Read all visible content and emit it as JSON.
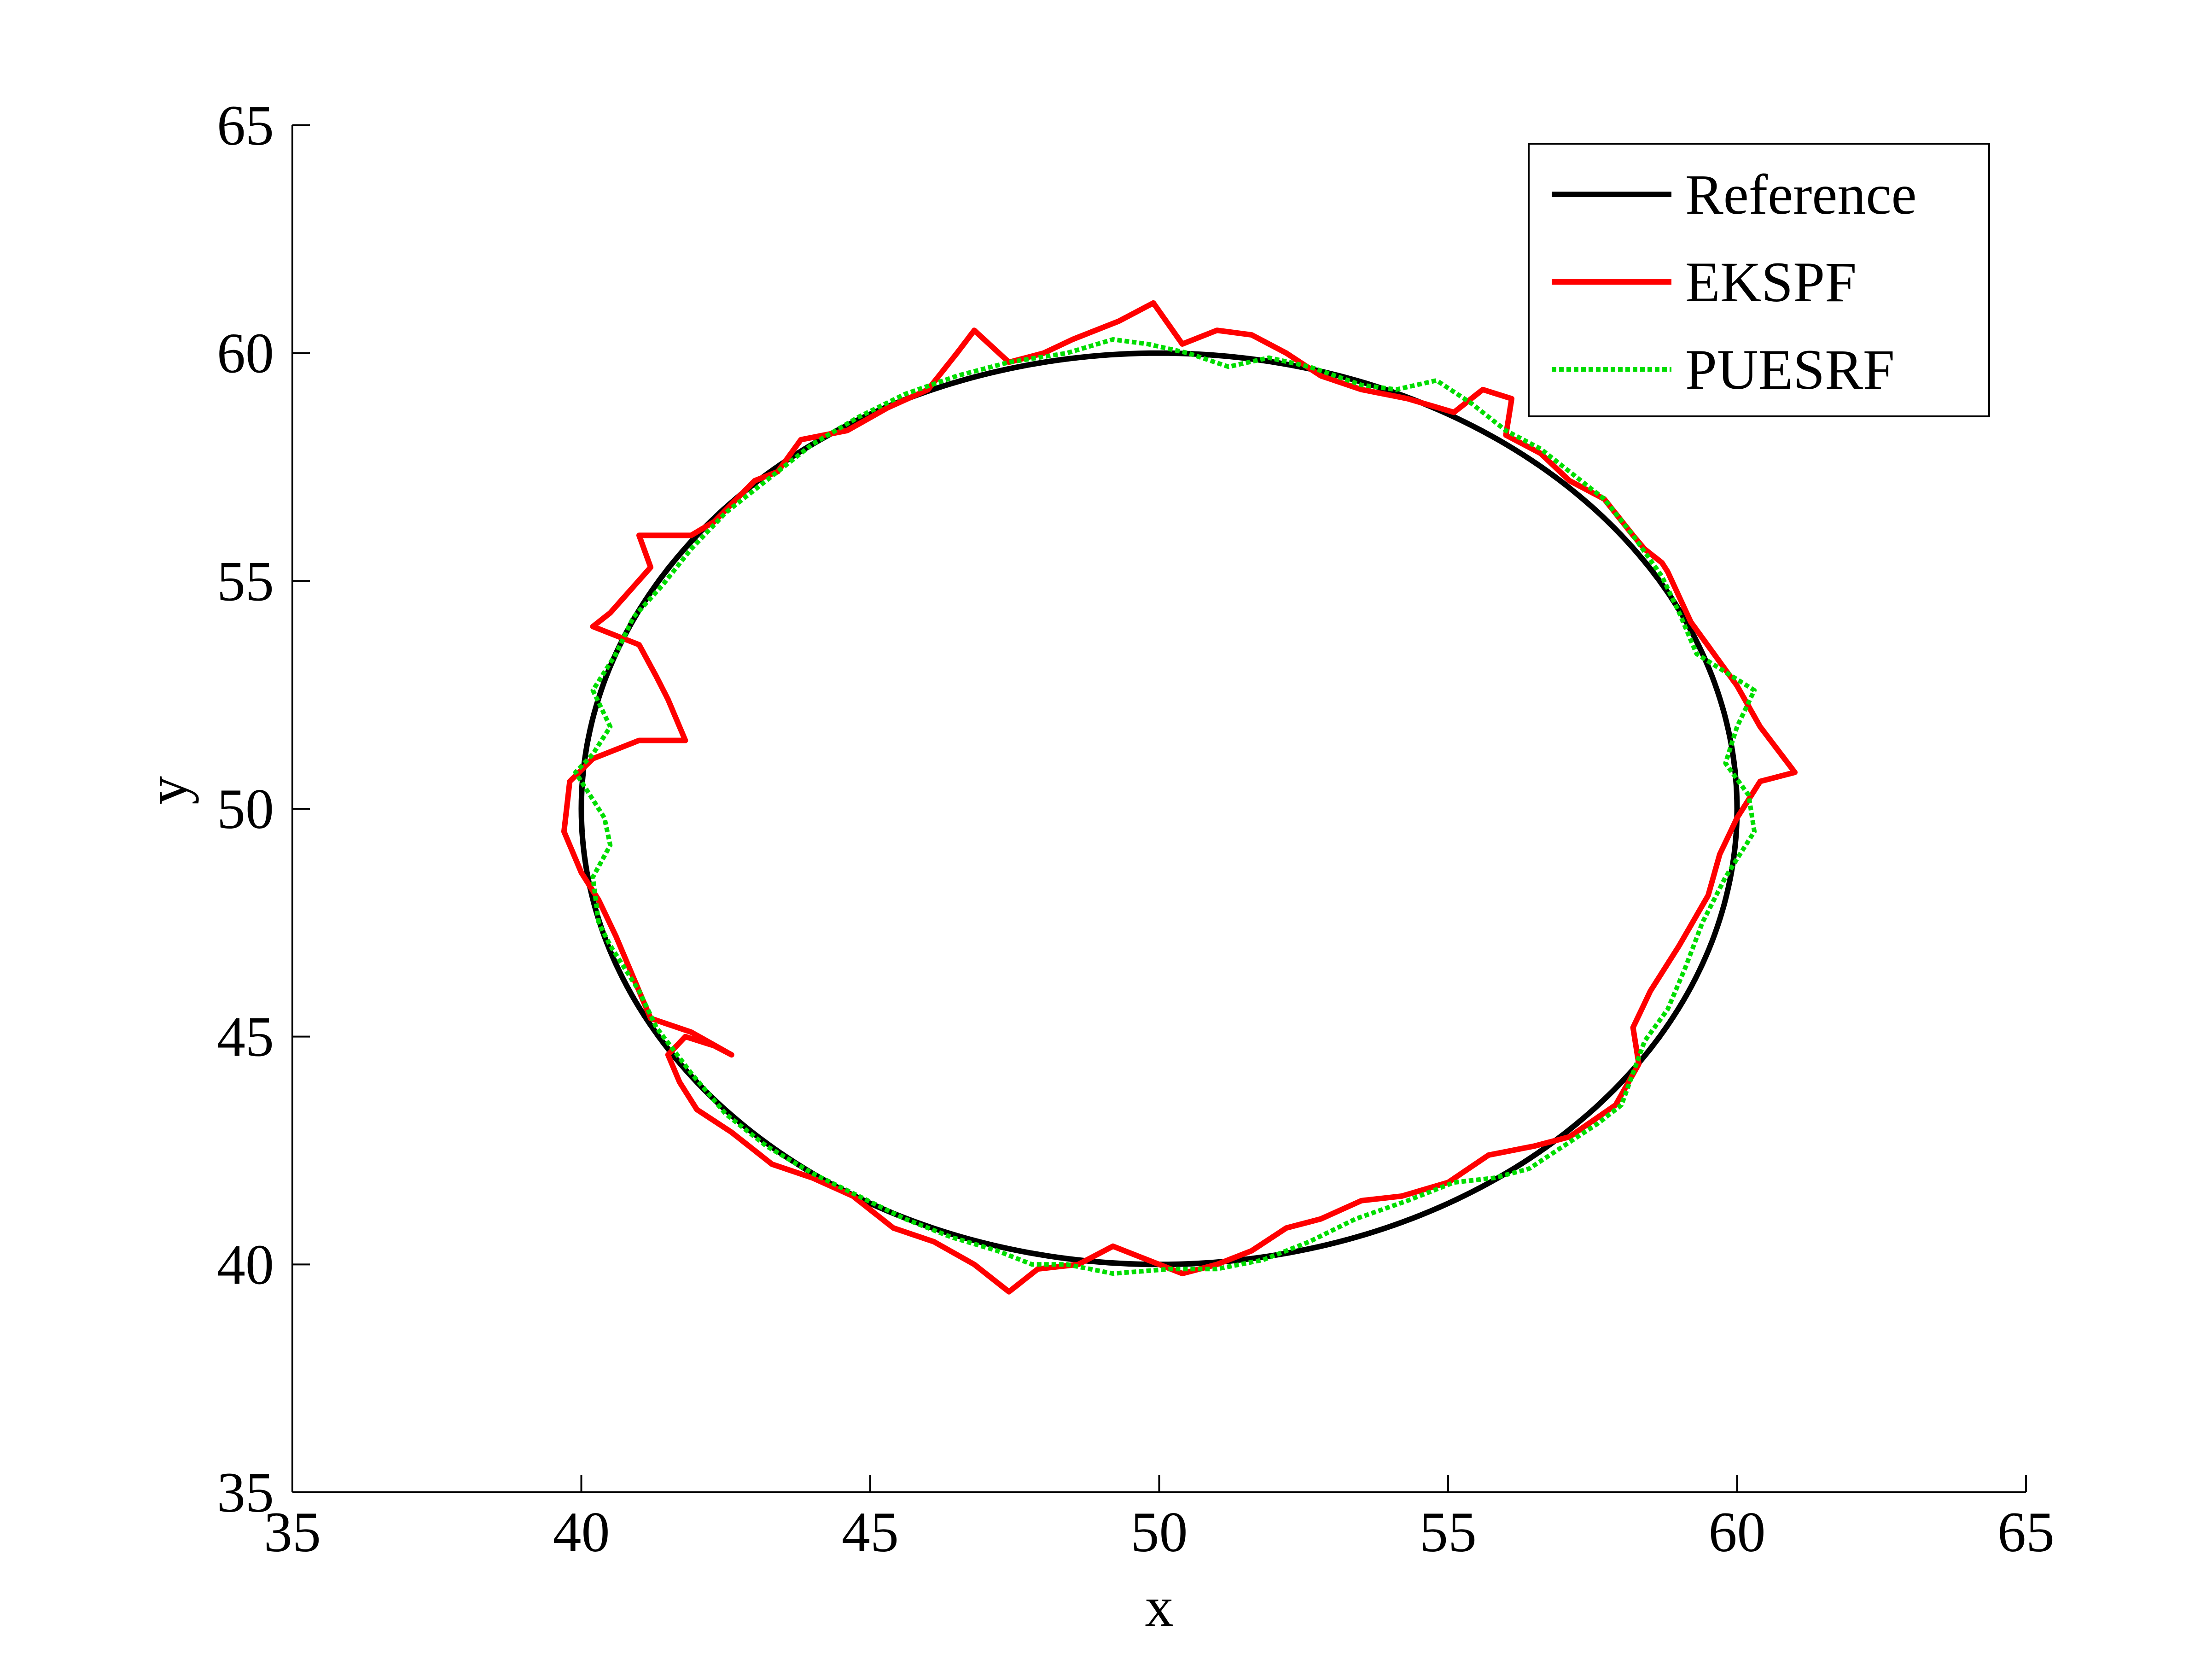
{
  "chart_data": {
    "type": "line",
    "title": "",
    "xlabel": "x",
    "ylabel": "y",
    "xlim": [
      35,
      65
    ],
    "ylim": [
      35,
      65
    ],
    "xticks": [
      35,
      40,
      45,
      50,
      55,
      60,
      65
    ],
    "yticks": [
      35,
      40,
      45,
      50,
      55,
      60,
      65
    ],
    "xtick_labels": [
      "35",
      "40",
      "45",
      "50",
      "55",
      "60",
      "65"
    ],
    "ytick_labels": [
      "35",
      "40",
      "45",
      "50",
      "55",
      "60",
      "65"
    ],
    "grid": false,
    "legend_position": "top-right",
    "legend": [
      "Reference",
      "EKSPF",
      "PUESRF"
    ],
    "series": [
      {
        "name": "Reference",
        "color": "#000000",
        "style": "solid",
        "shape": "ellipse",
        "center": [
          50,
          50
        ],
        "radius_x": 10,
        "radius_y": 10
      },
      {
        "name": "EKSPF",
        "color": "#ff0000",
        "style": "solid",
        "x": [
          42.6,
          41.9,
          41.2,
          40.9,
          40.6,
          40.3,
          40.0,
          39.7,
          39.8,
          40.2,
          41.0,
          41.8,
          41.5,
          41.3,
          41.0,
          40.2,
          40.5,
          41.2,
          41.0,
          41.9,
          42.3,
          43.0,
          43.4,
          43.8,
          44.6,
          45.3,
          46.0,
          46.5,
          46.8,
          47.4,
          48.0,
          48.5,
          49.3,
          49.9,
          50.4,
          51.0,
          51.6,
          52.2,
          52.8,
          53.5,
          54.3,
          55.1,
          55.6,
          56.1,
          56.0,
          56.6,
          57.1,
          57.7,
          58.2,
          58.4,
          58.7,
          58.8,
          59.2,
          59.6,
          60.0,
          60.4,
          61.0,
          60.4,
          60.0,
          59.7,
          59.5,
          59.0,
          58.5,
          58.2,
          58.3,
          57.9,
          57.1,
          56.5,
          55.7,
          55.0,
          54.2,
          53.5,
          52.8,
          52.2,
          51.6,
          51.0,
          50.4,
          49.8,
          49.2,
          48.6,
          47.9,
          47.4,
          46.8,
          46.1,
          45.4,
          44.7,
          44.0,
          43.3,
          42.6,
          42.0,
          41.7,
          41.5,
          41.8,
          42.3,
          42.6
        ],
        "y": [
          44.6,
          45.1,
          45.4,
          46.3,
          47.2,
          48.0,
          48.6,
          49.5,
          50.6,
          51.1,
          51.5,
          51.5,
          52.4,
          52.9,
          53.6,
          54.0,
          54.3,
          55.3,
          56.0,
          56.0,
          56.3,
          57.2,
          57.4,
          58.1,
          58.3,
          58.8,
          59.2,
          60.0,
          60.5,
          59.8,
          60.0,
          60.3,
          60.7,
          61.1,
          60.2,
          60.5,
          60.4,
          60.0,
          59.5,
          59.2,
          59.0,
          58.7,
          59.2,
          59.0,
          58.2,
          57.8,
          57.2,
          56.8,
          56.0,
          55.7,
          55.4,
          55.2,
          54.1,
          53.4,
          52.7,
          51.8,
          50.8,
          50.6,
          49.8,
          49.0,
          48.1,
          47.0,
          46.0,
          45.2,
          44.4,
          43.5,
          42.8,
          42.6,
          42.4,
          41.8,
          41.5,
          41.4,
          41.0,
          40.8,
          40.3,
          40.0,
          39.8,
          40.1,
          40.4,
          40.0,
          39.9,
          39.4,
          40.0,
          40.5,
          40.8,
          41.5,
          41.9,
          42.2,
          42.9,
          43.4,
          44.0,
          44.6,
          45.0,
          44.8,
          44.6
        ]
      },
      {
        "name": "PUESRF",
        "color": "#00dd00",
        "style": "dotted",
        "x": [
          40.3,
          40.2,
          40.5,
          40.4,
          40.1,
          39.9,
          40.2,
          40.5,
          40.2,
          40.6,
          40.9,
          41.4,
          41.9,
          42.5,
          43.3,
          44.0,
          44.8,
          45.6,
          46.5,
          47.4,
          48.4,
          49.2,
          49.8,
          50.5,
          51.2,
          51.9,
          52.6,
          53.5,
          54.1,
          54.8,
          55.4,
          56.0,
          56.6,
          57.1,
          57.7,
          58.2,
          58.7,
          59.0,
          59.3,
          59.8,
          60.3,
          60.0,
          59.8,
          60.2,
          60.3,
          59.8,
          59.4,
          59.1,
          58.8,
          58.4,
          58.2,
          58.0,
          57.6,
          57.0,
          56.4,
          55.8,
          55.1,
          54.3,
          53.4,
          52.6,
          51.8,
          51.0,
          50.2,
          49.2,
          48.4,
          47.8,
          47.2,
          46.4,
          45.6,
          44.8,
          44.0,
          43.2,
          42.5,
          41.9,
          41.3,
          41.0,
          40.7,
          40.5,
          40.3
        ],
        "y": [
          47.5,
          48.5,
          49.2,
          49.8,
          50.4,
          50.8,
          51.2,
          51.8,
          52.6,
          53.4,
          54.2,
          54.9,
          55.7,
          56.5,
          57.3,
          58.0,
          58.6,
          59.1,
          59.5,
          59.8,
          60.0,
          60.3,
          60.2,
          60.0,
          59.7,
          59.9,
          59.7,
          59.3,
          59.2,
          59.4,
          58.9,
          58.3,
          57.9,
          57.4,
          56.8,
          56.0,
          55.1,
          54.3,
          53.4,
          53.0,
          52.6,
          51.8,
          51.0,
          50.3,
          49.5,
          48.5,
          47.5,
          46.5,
          45.6,
          44.9,
          44.2,
          43.5,
          43.1,
          42.6,
          42.1,
          41.9,
          41.8,
          41.4,
          41.0,
          40.5,
          40.1,
          39.9,
          39.9,
          39.8,
          40.0,
          40.0,
          40.3,
          40.6,
          41.0,
          41.5,
          42.0,
          42.6,
          43.3,
          44.2,
          45.2,
          46.0,
          46.6,
          47.0,
          47.5
        ]
      }
    ]
  }
}
